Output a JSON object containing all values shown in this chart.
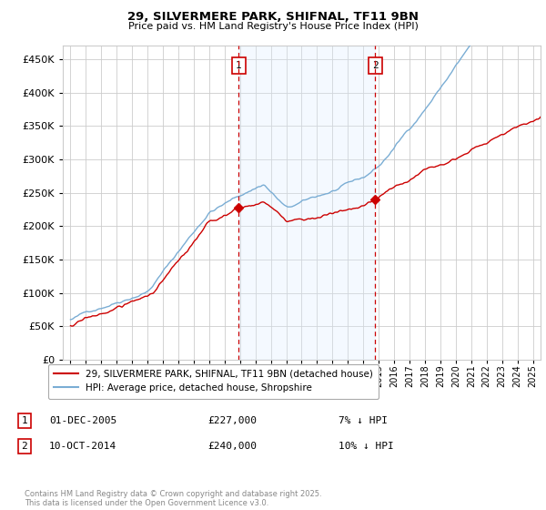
{
  "title": "29, SILVERMERE PARK, SHIFNAL, TF11 9BN",
  "subtitle": "Price paid vs. HM Land Registry's House Price Index (HPI)",
  "legend_entry1": "29, SILVERMERE PARK, SHIFNAL, TF11 9BN (detached house)",
  "legend_entry2": "HPI: Average price, detached house, Shropshire",
  "annotation1_date": "01-DEC-2005",
  "annotation1_price": "£227,000",
  "annotation1_hpi": "7% ↓ HPI",
  "annotation2_date": "10-OCT-2014",
  "annotation2_price": "£240,000",
  "annotation2_hpi": "10% ↓ HPI",
  "sale1_x": 2005.92,
  "sale1_y": 227000,
  "sale2_x": 2014.78,
  "sale2_y": 240000,
  "vline1_x": 2005.92,
  "vline2_x": 2014.78,
  "red_color": "#cc0000",
  "blue_color": "#7aadd4",
  "shade_color": "#ddeeff",
  "grid_color": "#cccccc",
  "background_color": "#ffffff",
  "footer": "Contains HM Land Registry data © Crown copyright and database right 2025.\nThis data is licensed under the Open Government Licence v3.0.",
  "ylim": [
    0,
    470000
  ],
  "xlim": [
    1994.5,
    2025.5
  ]
}
